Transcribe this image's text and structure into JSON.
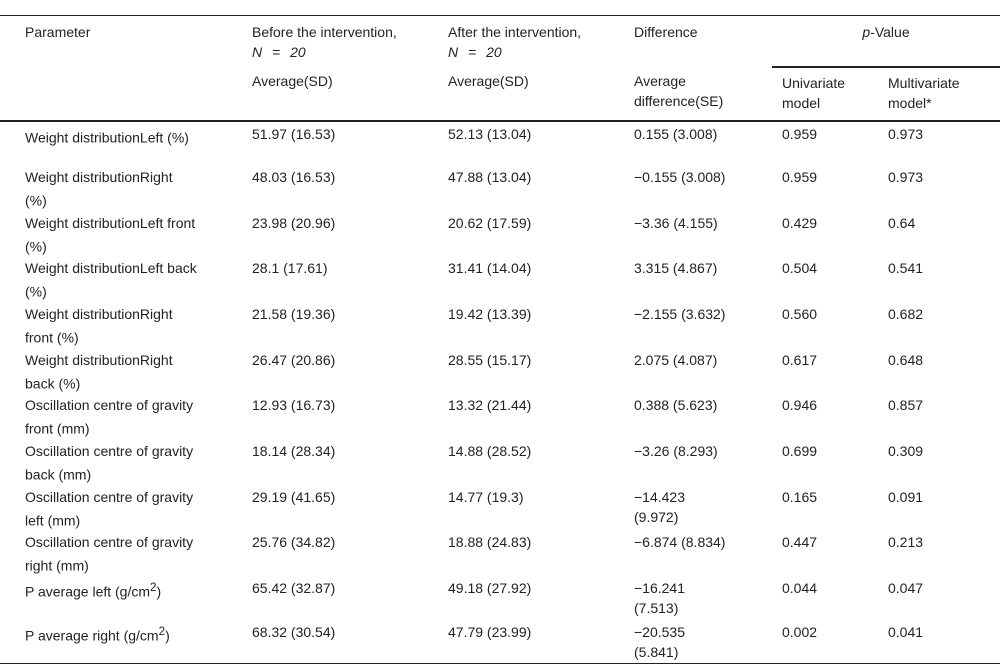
{
  "header": {
    "parameter": "Parameter",
    "before": "Before the intervention,",
    "before_n": "N = 20",
    "after": "After the intervention,",
    "after_n": "N = 20",
    "difference": "Difference",
    "pvalue_p": "p",
    "pvalue_rest": "-Value",
    "before_sub": "Average(SD)",
    "after_sub": "Average(SD)",
    "difference_sub": "Average difference(SE)",
    "univariate": "Univariate model",
    "multivariate": "Multivariate model*"
  },
  "rows": [
    {
      "param": "Weight distributionLeft (%)",
      "sup": "",
      "suffix": "",
      "before": "51.97 (16.53)",
      "after": "52.13 (13.04)",
      "diff": "0.155 (3.008)",
      "uni": "0.959",
      "multi": "0.973"
    },
    {
      "param": "Weight distributionRight (%)",
      "sup": "",
      "suffix": "",
      "before": "48.03 (16.53)",
      "after": "47.88 (13.04)",
      "diff": "−0.155 (3.008)",
      "uni": "0.959",
      "multi": "0.973"
    },
    {
      "param": "Weight distributionLeft front (%)",
      "sup": "",
      "suffix": "",
      "before": "23.98 (20.96)",
      "after": "20.62 (17.59)",
      "diff": "−3.36 (4.155)",
      "uni": "0.429",
      "multi": "0.64"
    },
    {
      "param": "Weight distributionLeft back (%)",
      "sup": "",
      "suffix": "",
      "before": "28.1 (17.61)",
      "after": "31.41 (14.04)",
      "diff": "3.315 (4.867)",
      "uni": "0.504",
      "multi": "0.541"
    },
    {
      "param": "Weight distributionRight front (%)",
      "sup": "",
      "suffix": "",
      "before": "21.58 (19.36)",
      "after": "19.42 (13.39)",
      "diff": "−2.155 (3.632)",
      "uni": "0.560",
      "multi": "0.682"
    },
    {
      "param": "Weight distributionRight back (%)",
      "sup": "",
      "suffix": "",
      "before": "26.47 (20.86)",
      "after": "28.55 (15.17)",
      "diff": "2.075 (4.087)",
      "uni": "0.617",
      "multi": "0.648"
    },
    {
      "param": "Oscillation centre of gravity front (mm)",
      "sup": "",
      "suffix": "",
      "before": "12.93 (16.73)",
      "after": "13.32 (21.44)",
      "diff": "0.388 (5.623)",
      "uni": "0.946",
      "multi": "0.857"
    },
    {
      "param": "Oscillation centre of gravity back (mm)",
      "sup": "",
      "suffix": "",
      "before": "18.14 (28.34)",
      "after": "14.88 (28.52)",
      "diff": "−3.26 (8.293)",
      "uni": "0.699",
      "multi": "0.309"
    },
    {
      "param": "Oscillation centre of gravity left (mm)",
      "sup": "",
      "suffix": "",
      "before": "29.19 (41.65)",
      "after": "14.77 (19.3)",
      "diff": "−14.423 (9.972)",
      "uni": "0.165",
      "multi": "0.091"
    },
    {
      "param": "Oscillation centre of gravity right (mm)",
      "sup": "",
      "suffix": "",
      "before": "25.76 (34.82)",
      "after": "18.88 (24.83)",
      "diff": "−6.874 (8.834)",
      "uni": "0.447",
      "multi": "0.213"
    },
    {
      "param": "P average left (g/cm",
      "sup": "2",
      "suffix": ")",
      "before": "65.42 (32.87)",
      "after": "49.18 (27.92)",
      "diff": "−16.241 (7.513)",
      "uni": "0.044",
      "multi": "0.047"
    },
    {
      "param": "P average right (g/cm",
      "sup": "2",
      "suffix": ")",
      "before": "68.32 (30.54)",
      "after": "47.79 (23.99)",
      "diff": "−20.535 (5.841)",
      "uni": "0.002",
      "multi": "0.041"
    }
  ]
}
